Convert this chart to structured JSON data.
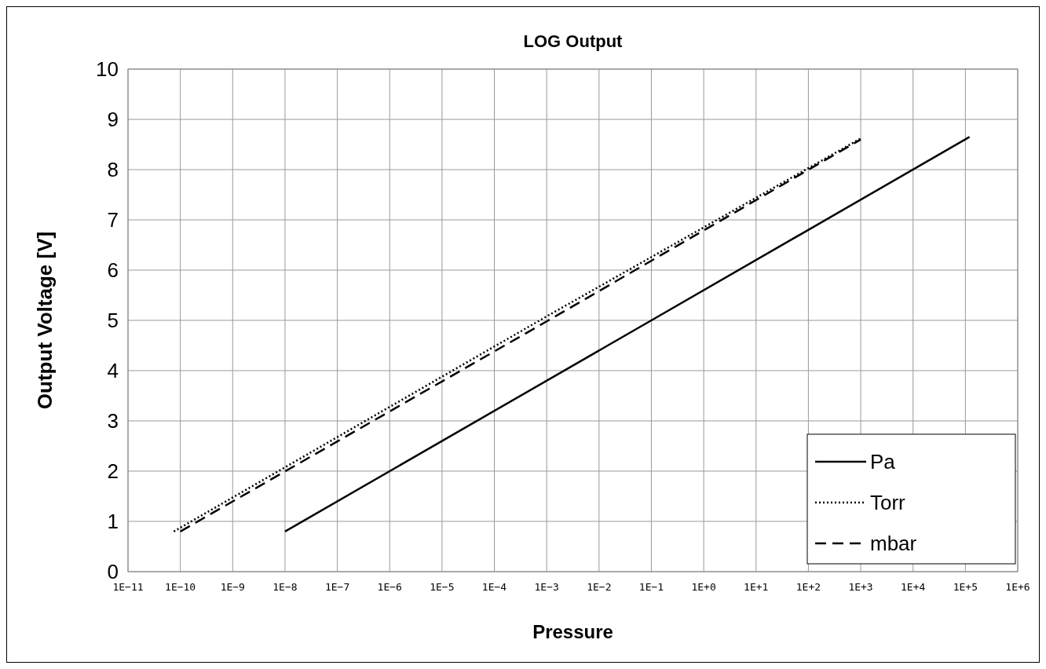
{
  "chart_data": {
    "type": "line",
    "title": "LOG Output",
    "xlabel": "Pressure",
    "ylabel": "Output Voltage [V]",
    "log": "x",
    "grid": true,
    "legend": "bottom right",
    "marker": "none",
    "xlim": [
      1e-11,
      1000000.0
    ],
    "xticks": [
      {
        "value": 1e-11,
        "label": "1E−11"
      },
      {
        "value": 1e-10,
        "label": "1E−10"
      },
      {
        "value": 1e-09,
        "label": "1E−9"
      },
      {
        "value": 1e-08,
        "label": "1E−8"
      },
      {
        "value": 1e-07,
        "label": "1E−7"
      },
      {
        "value": 1e-06,
        "label": "1E−6"
      },
      {
        "value": 1e-05,
        "label": "1E−5"
      },
      {
        "value": 0.0001,
        "label": "1E−4"
      },
      {
        "value": 0.001,
        "label": "1E−3"
      },
      {
        "value": 0.01,
        "label": "1E−2"
      },
      {
        "value": 0.1,
        "label": "1E−1"
      },
      {
        "value": 1,
        "label": "1E+0"
      },
      {
        "value": 10,
        "label": "1E+1"
      },
      {
        "value": 100,
        "label": "1E+2"
      },
      {
        "value": 1000,
        "label": "1E+3"
      },
      {
        "value": 10000,
        "label": "1E+4"
      },
      {
        "value": 100000,
        "label": "1E+5"
      },
      {
        "value": 1000000,
        "label": "1E+6"
      }
    ],
    "ylim": [
      0,
      10
    ],
    "yticks": [
      0,
      1,
      2,
      3,
      4,
      5,
      6,
      7,
      8,
      9,
      10
    ],
    "series": [
      {
        "name": "Pa",
        "color": "#000000",
        "line_style": "solid",
        "x": [
          1e-08,
          0.1,
          120000
        ],
        "values": [
          0.8,
          5.0,
          8.65
        ]
      },
      {
        "name": "Torr",
        "color": "#000000",
        "line_style": "dotted",
        "x": [
          7.5e-11,
          0.001,
          1000
        ],
        "values": [
          0.8,
          5.08,
          8.62
        ]
      },
      {
        "name": "mbar",
        "color": "#000000",
        "line_style": "dashed",
        "x": [
          1e-10,
          0.001,
          1000
        ],
        "values": [
          0.8,
          4.98,
          8.6
        ]
      }
    ]
  }
}
